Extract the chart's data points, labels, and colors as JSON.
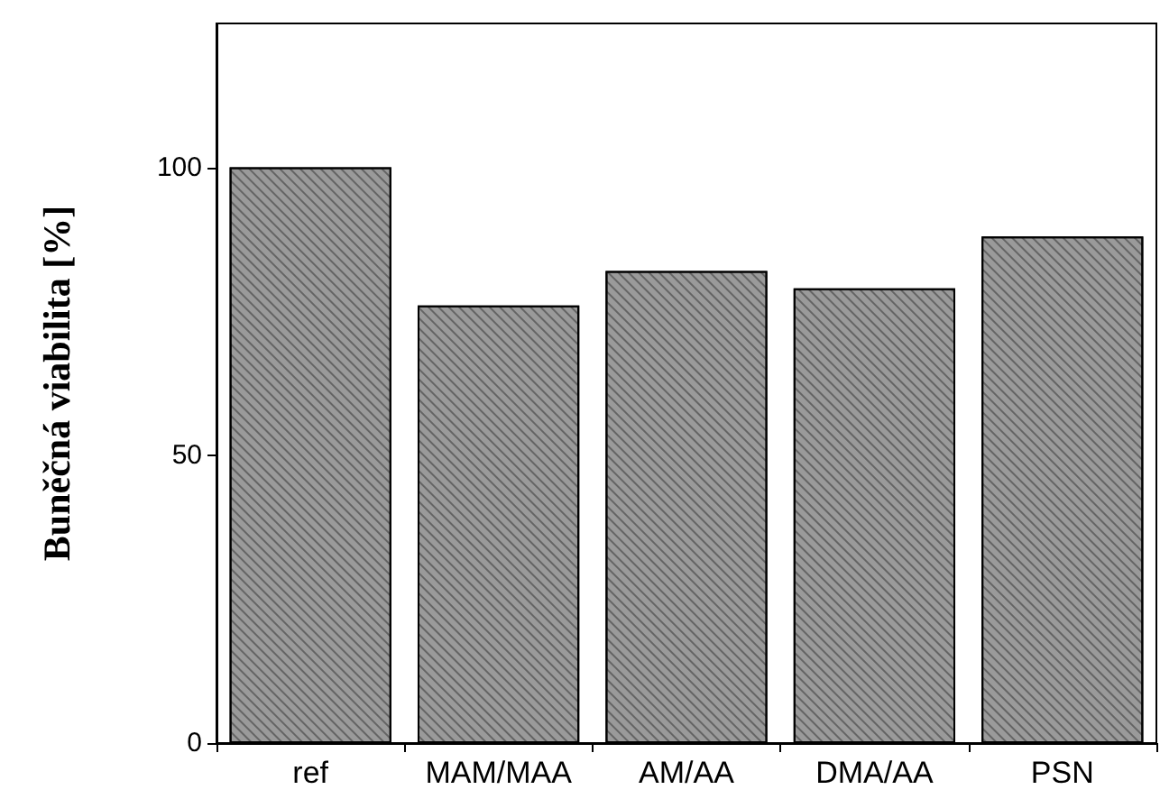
{
  "chart_data": {
    "type": "bar",
    "ylabel": "Buněčná viabilita [%]",
    "categories": [
      "ref",
      "MAM/MAA",
      "AM/AA",
      "DMA/AA",
      "PSN"
    ],
    "values": [
      100,
      76,
      82,
      79,
      88
    ],
    "color": "#9a9a9a",
    "ylim": [
      0,
      125
    ],
    "yticks": [
      0,
      50,
      100
    ]
  }
}
